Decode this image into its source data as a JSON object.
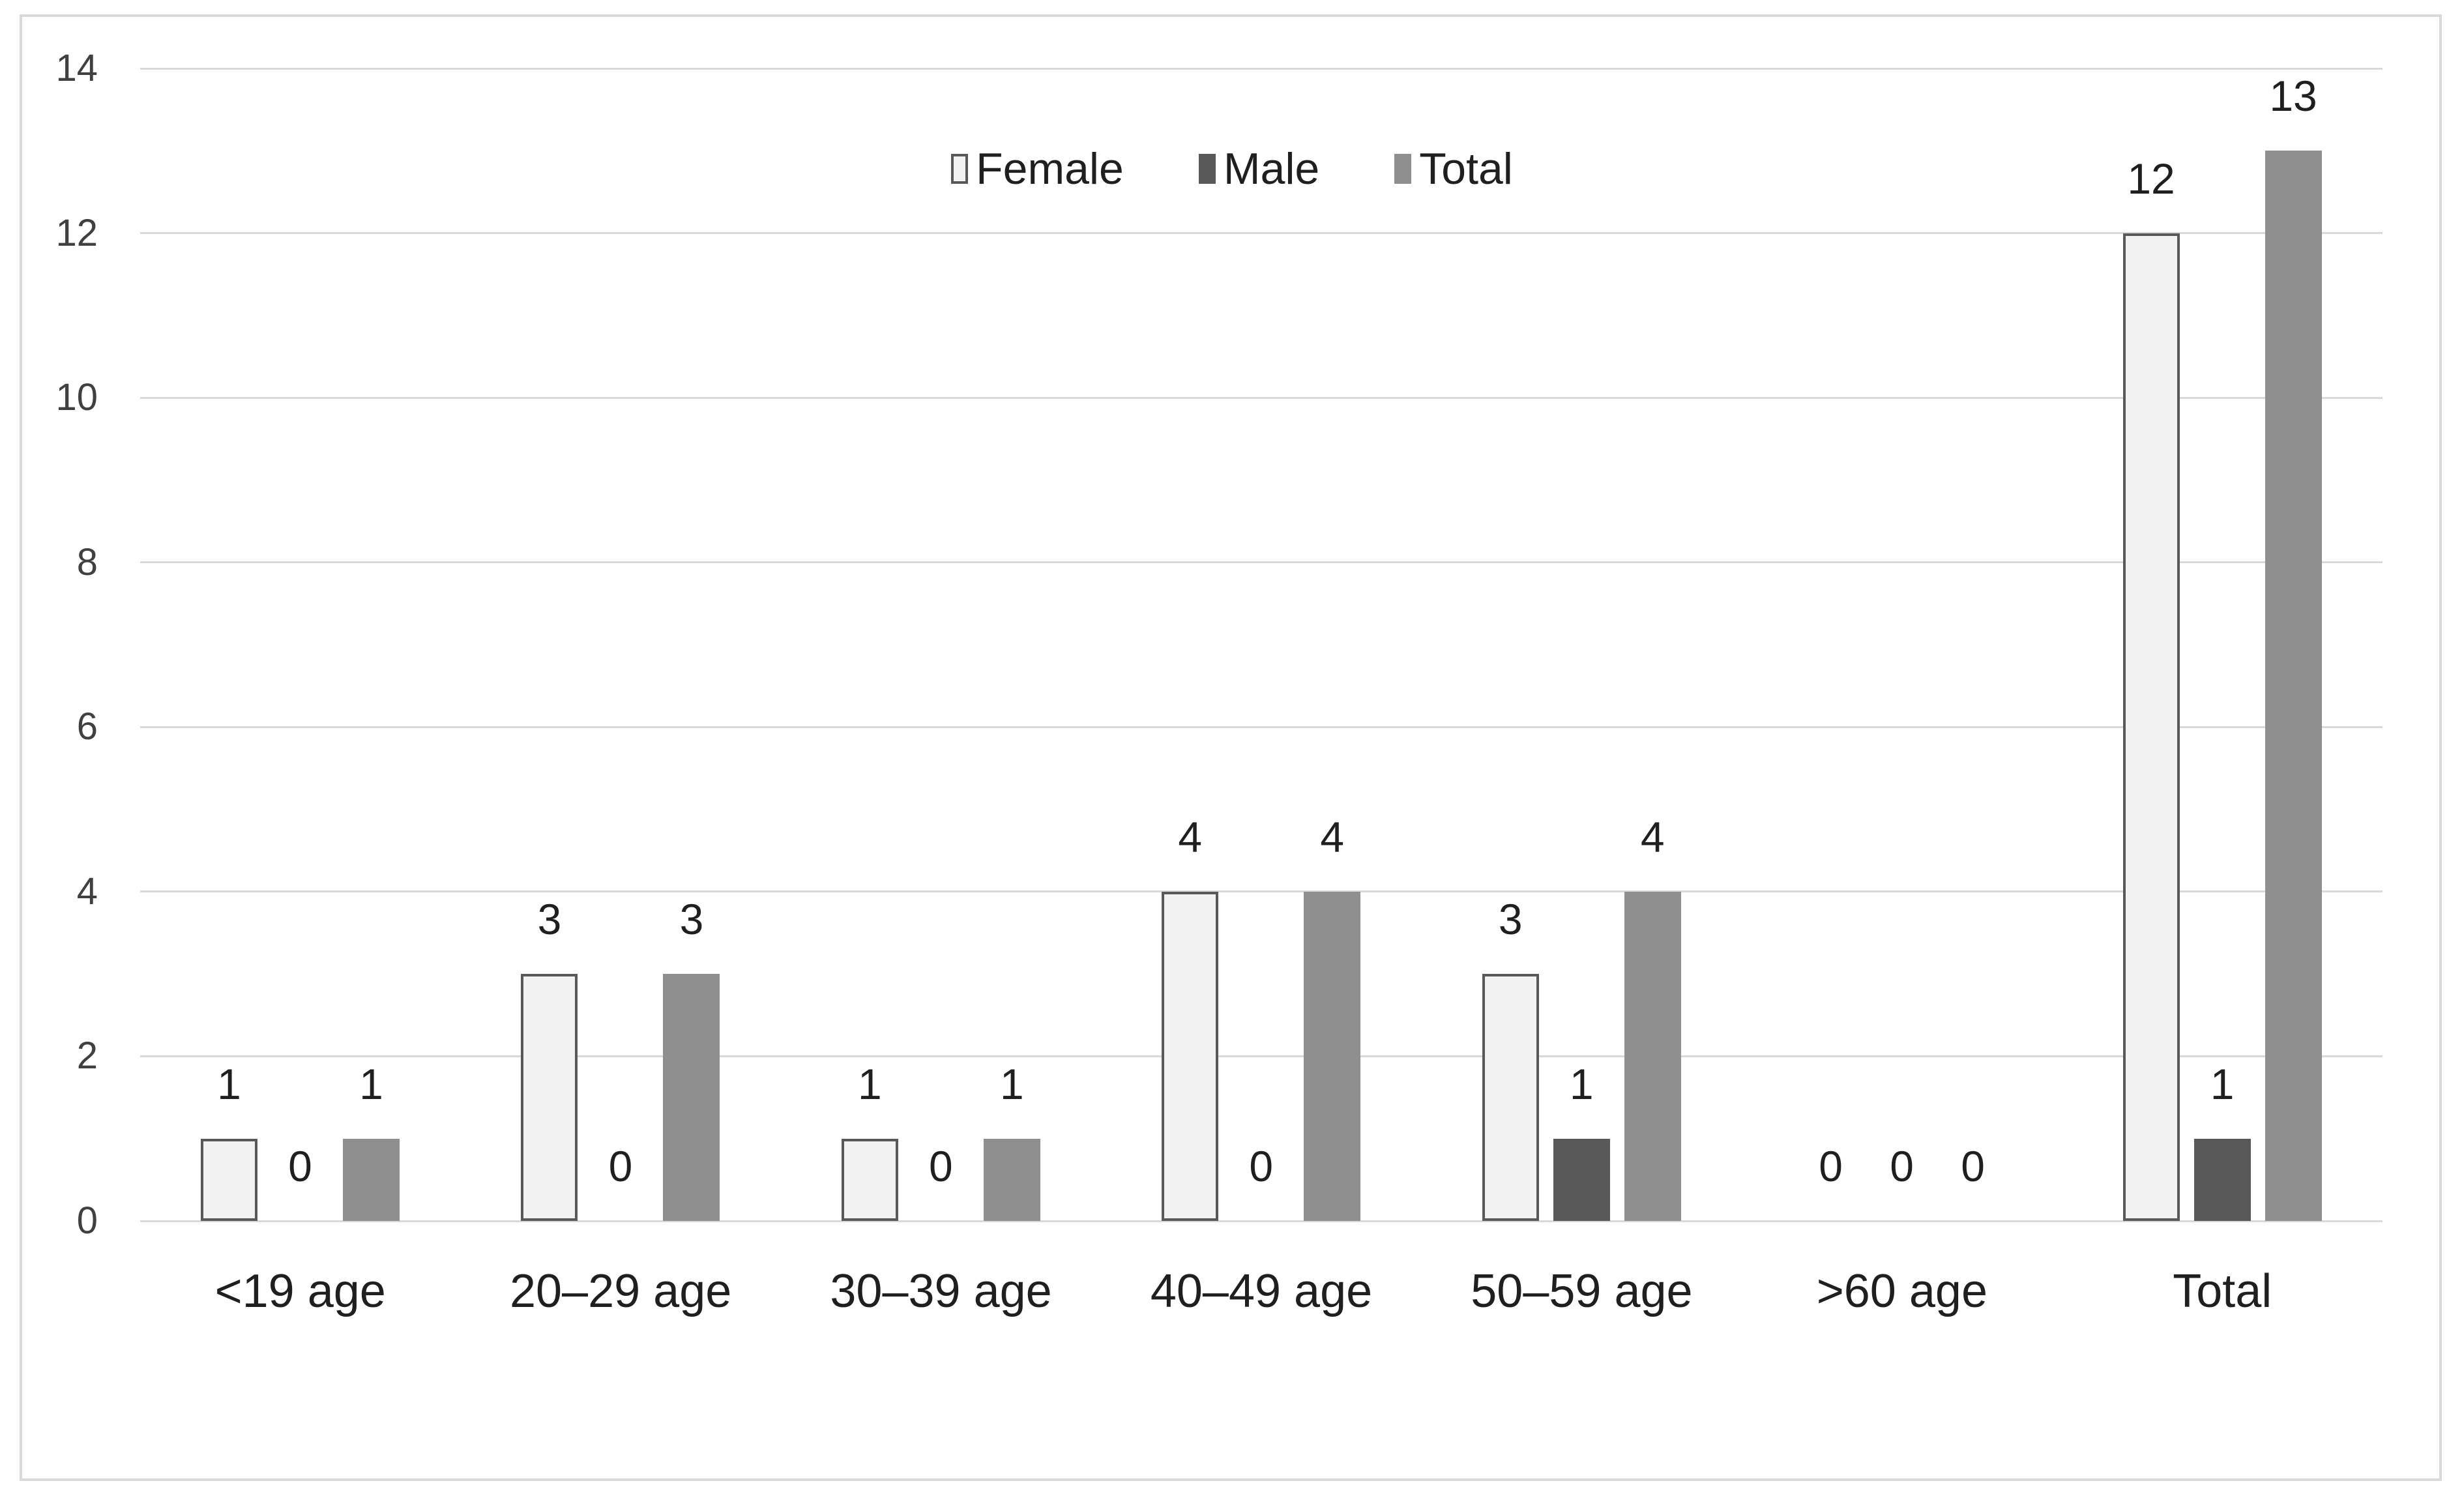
{
  "chart_data": {
    "type": "bar",
    "title": "",
    "xlabel": "",
    "ylabel": "",
    "categories": [
      "<19 age",
      "20–29 age",
      "30–39 age",
      "40–49 age",
      "50–59 age",
      ">60 age",
      "Total"
    ],
    "series": [
      {
        "name": "Female",
        "fill": "#f2f2f2",
        "border": "#595959",
        "values": [
          1,
          3,
          1,
          4,
          3,
          0,
          12
        ]
      },
      {
        "name": "Male",
        "fill": "#595959",
        "border": null,
        "values": [
          0,
          0,
          0,
          0,
          1,
          0,
          1
        ]
      },
      {
        "name": "Total",
        "fill": "#8f8f8f",
        "border": null,
        "values": [
          1,
          3,
          1,
          4,
          4,
          0,
          13
        ]
      }
    ],
    "ylim": [
      0,
      14
    ],
    "yticks": [
      0,
      2,
      4,
      6,
      8,
      10,
      12,
      14
    ],
    "grid": true,
    "value_labels": true,
    "legend_position": "top-center",
    "colors": {
      "background": "#ffffff",
      "frame": "#d9d9d9",
      "gridline": "#d9d9d9",
      "axis_text": "#404040",
      "label_text": "#1f1f1f"
    }
  }
}
